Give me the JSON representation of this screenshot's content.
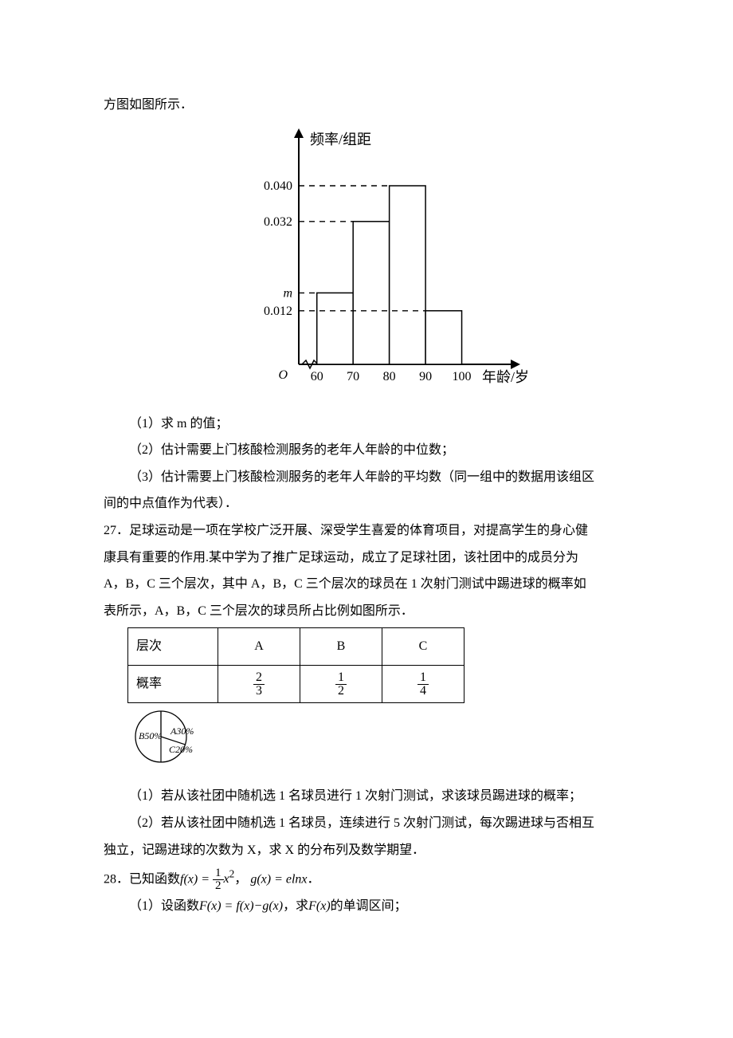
{
  "intro_tail": "方图如图所示．",
  "histogram": {
    "y_axis_label": "频率/组距",
    "x_axis_label": "年龄/岁",
    "origin_label": "O",
    "y_ticks": [
      "0.040",
      "0.032",
      "m",
      "0.012"
    ],
    "y_tick_values": [
      0.04,
      0.032,
      0.016,
      0.012
    ],
    "x_ticks": [
      "60",
      "70",
      "80",
      "90",
      "100"
    ],
    "bars": [
      {
        "x0": 60,
        "x1": 70,
        "h": 0.016
      },
      {
        "x0": 70,
        "x1": 80,
        "h": 0.032
      },
      {
        "x0": 80,
        "x1": 90,
        "h": 0.04
      },
      {
        "x0": 90,
        "x1": 100,
        "h": 0.012
      }
    ],
    "axis_color": "#000000",
    "bar_stroke": "#000000",
    "bar_fill": "#ffffff",
    "dash_color": "#000000",
    "tick_fontsize": 16,
    "label_fontsize": 18,
    "y_max": 0.05,
    "x_min": 55,
    "x_max": 110
  },
  "q1_1": "（1）求 m 的值；",
  "q1_2": "（2）估计需要上门核酸检测服务的老年人年龄的中位数；",
  "q1_3": "（3）估计需要上门核酸检测服务的老年人年龄的平均数（同一组中的数据用该组区",
  "q1_3b": "间的中点值作为代表）．",
  "p27_a": "27．足球运动是一项在学校广泛开展、深受学生喜爱的体育项目，对提高学生的身心健",
  "p27_b": "康具有重要的作用.某中学为了推广足球运动，成立了足球社团，该社团中的成员分为",
  "p27_c": "A，B，C 三个层次，其中 A，B，C 三个层次的球员在 1 次射门测试中踢进球的概率如",
  "p27_d": "表所示，A，B，C 三个层次的球员所占比例如图所示．",
  "table": {
    "row1_label": "层次",
    "cols": [
      "A",
      "B",
      "C"
    ],
    "row2_label": "概率",
    "fracs": [
      {
        "n": "2",
        "d": "3"
      },
      {
        "n": "1",
        "d": "2"
      },
      {
        "n": "1",
        "d": "4"
      }
    ]
  },
  "pie": {
    "slices": [
      {
        "label": "A30%",
        "pct": 30,
        "start": -90,
        "end": 18
      },
      {
        "label": "C20%",
        "pct": 20,
        "start": 18,
        "end": 90
      },
      {
        "label": "B50%",
        "pct": 50,
        "start": 90,
        "end": 270
      }
    ],
    "stroke": "#000000",
    "fill": "#ffffff",
    "radius": 32,
    "fontsize": 12
  },
  "q2_1": "（1）若从该社团中随机选 1 名球员进行 1 次射门测试，求该球员踢进球的概率；",
  "q2_2": "（2）若从该社团中随机选 1 名球员，连续进行 5 次射门测试，每次踢进球与否相互",
  "q2_2b": "独立，记踢进球的次数为 X，求 X 的分布列及数学期望．",
  "p28_prefix": "28．已知函数",
  "p28_f": "f(x) = ",
  "p28_frac": {
    "n": "1",
    "d": "2"
  },
  "p28_x2": "x",
  "p28_sep": "，",
  "p28_g": "g(x) = elnx",
  "p28_end": "．",
  "q3_1_a": "（1）设函数",
  "q3_1_b": "F(x) = f(x)−g(x)",
  "q3_1_c": "，求",
  "q3_1_d": "F(x)",
  "q3_1_e": "的单调区间；"
}
